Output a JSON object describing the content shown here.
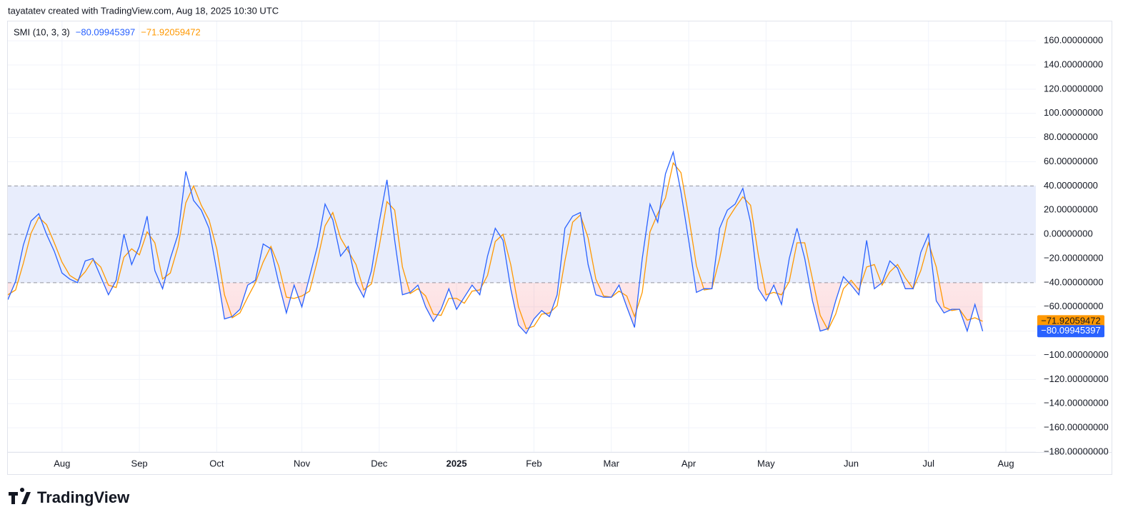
{
  "header": "tayatatev created with TradingView.com, Aug 18, 2025 10:30 UTC",
  "footer": "TradingView",
  "chart_data": {
    "type": "line",
    "title": "SMI (10, 3, 3)",
    "categories": [
      null,
      null,
      null,
      null,
      null,
      null,
      null,
      "Aug",
      null,
      null,
      null,
      null,
      null,
      null,
      null,
      null,
      null,
      "Sep",
      null,
      null,
      null,
      null,
      null,
      null,
      null,
      null,
      null,
      "Oct",
      null,
      null,
      null,
      null,
      null,
      null,
      null,
      null,
      null,
      null,
      "Nov",
      null,
      null,
      null,
      null,
      null,
      null,
      null,
      null,
      null,
      "Dec",
      null,
      null,
      null,
      null,
      null,
      null,
      null,
      null,
      null,
      "2025",
      null,
      null,
      null,
      null,
      null,
      null,
      null,
      null,
      null,
      "Feb",
      null,
      null,
      null,
      null,
      null,
      null,
      null,
      null,
      null,
      "Mar",
      null,
      null,
      null,
      null,
      null,
      null,
      null,
      null,
      null,
      "Apr",
      null,
      null,
      null,
      null,
      null,
      null,
      null,
      null,
      null,
      "May",
      null,
      null,
      null,
      null,
      null,
      null,
      null,
      null,
      null,
      null,
      "Jun",
      null,
      null,
      null,
      null,
      null,
      null,
      null,
      null,
      null,
      "Jul",
      null,
      null,
      null,
      null,
      null,
      null,
      null,
      null,
      null,
      "Aug"
    ],
    "series": [
      {
        "color": "#2962ff",
        "values": [
          -54,
          -39,
          -9,
          11,
          17,
          0,
          -14,
          -32,
          -37,
          -40,
          -22,
          -20,
          -35,
          -50,
          -38,
          0,
          -25,
          -10,
          15,
          -30,
          -45,
          -20,
          0,
          52,
          28,
          20,
          5,
          -30,
          -70,
          -68,
          -62,
          -42,
          -38,
          -8,
          -12,
          -40,
          -65,
          -42,
          -60,
          -35,
          -10,
          25,
          12,
          -18,
          -10,
          -40,
          -52,
          -30,
          10,
          45,
          -5,
          -50,
          -48,
          -42,
          -60,
          -72,
          -62,
          -45,
          -62,
          -52,
          -42,
          -50,
          -18,
          5,
          -5,
          -45,
          -75,
          -82,
          -70,
          -63,
          -68,
          -50,
          5,
          15,
          18,
          -25,
          -50,
          -52,
          -52,
          -42,
          -60,
          -77,
          -20,
          25,
          10,
          50,
          68,
          35,
          -5,
          -48,
          -45,
          -45,
          5,
          20,
          25,
          38,
          10,
          -45,
          -55,
          -42,
          -58,
          -20,
          5,
          -20,
          -55,
          -80,
          -78,
          -55,
          -35,
          -42,
          -50,
          -5,
          -45,
          -40,
          -22,
          -28,
          -45,
          -45,
          -15,
          0,
          -55,
          -65,
          -62,
          -62,
          -80,
          -58,
          -80.09945397,
          null,
          null,
          null
        ],
        "value_labels": [
          null,
          null,
          null,
          null,
          null,
          null,
          null,
          null,
          null,
          null,
          null,
          null,
          null,
          null,
          null,
          null,
          null,
          null,
          null,
          null,
          null,
          null,
          null,
          null,
          null,
          null,
          null,
          null,
          null,
          null,
          null,
          null,
          null,
          null,
          null,
          null,
          null,
          null,
          null,
          null,
          null,
          null,
          null,
          null,
          null,
          null,
          null,
          null,
          null,
          null,
          null,
          null,
          null,
          null,
          null,
          null,
          null,
          null,
          null,
          null,
          null,
          null,
          null,
          null,
          null,
          null,
          null,
          null,
          null,
          null,
          null,
          null,
          null,
          null,
          null,
          null,
          null,
          null,
          null,
          null,
          null,
          null,
          null,
          null,
          null,
          null,
          null,
          null,
          null,
          null,
          null,
          null,
          null,
          null,
          null,
          null,
          null,
          null,
          null,
          null,
          null,
          null,
          null,
          null,
          null,
          null,
          null,
          null,
          null,
          null,
          null,
          null,
          null,
          null,
          null,
          null,
          null,
          null,
          null,
          null,
          null,
          null,
          null,
          null,
          null,
          null,
          "−80.09945397",
          null,
          null,
          null
        ]
      },
      {
        "color": "#ff9800",
        "values": [
          -50,
          -46,
          -24,
          1,
          14,
          8,
          -7,
          -23,
          -34,
          -38,
          -31,
          -21,
          -27,
          -42,
          -44,
          -19,
          -12,
          -17,
          2,
          -7,
          -37,
          -32,
          -10,
          26,
          40,
          24,
          12,
          -12,
          -50,
          -69,
          -65,
          -52,
          -40,
          -23,
          -10,
          -26,
          -52,
          -53,
          -51,
          -47,
          -22,
          7,
          18,
          -3,
          -14,
          -25,
          -46,
          -41,
          -10,
          27,
          20,
          -27,
          -49,
          -45,
          -51,
          -66,
          -67,
          -53,
          -53,
          -57,
          -47,
          -46,
          -34,
          -6,
          0,
          -25,
          -60,
          -78,
          -76,
          -66,
          -65,
          -59,
          -22,
          10,
          16,
          -3,
          -37,
          -51,
          -52,
          -47,
          -51,
          -68,
          -48,
          2,
          17,
          30,
          59,
          51,
          15,
          -26,
          -46,
          -45,
          -20,
          12,
          22,
          31,
          24,
          -17,
          -50,
          -48,
          -50,
          -39,
          -7,
          -7,
          -37,
          -67,
          -79,
          -66,
          -45,
          -38,
          -46,
          -27,
          -25,
          -42,
          -31,
          -25,
          -36,
          -45,
          -30,
          -7,
          -27,
          -60,
          -63,
          -62,
          -71,
          -69,
          -71.92059472,
          null,
          null,
          null
        ],
        "value_labels": [
          null,
          null,
          null,
          null,
          null,
          null,
          null,
          null,
          null,
          null,
          null,
          null,
          null,
          null,
          null,
          null,
          null,
          null,
          null,
          null,
          null,
          null,
          null,
          null,
          null,
          null,
          null,
          null,
          null,
          null,
          null,
          null,
          null,
          null,
          null,
          null,
          null,
          null,
          null,
          null,
          null,
          null,
          null,
          null,
          null,
          null,
          null,
          null,
          null,
          null,
          null,
          null,
          null,
          null,
          null,
          null,
          null,
          null,
          null,
          null,
          null,
          null,
          null,
          null,
          null,
          null,
          null,
          null,
          null,
          null,
          null,
          null,
          null,
          null,
          null,
          null,
          null,
          null,
          null,
          null,
          null,
          null,
          null,
          null,
          null,
          null,
          null,
          null,
          null,
          null,
          null,
          null,
          null,
          null,
          null,
          null,
          null,
          null,
          null,
          null,
          null,
          null,
          null,
          null,
          null,
          null,
          null,
          null,
          null,
          null,
          null,
          null,
          null,
          null,
          null,
          null,
          null,
          null,
          null,
          null,
          null,
          null,
          null,
          null,
          null,
          null,
          "−71.92059472",
          null,
          null,
          null
        ]
      }
    ],
    "ylim": [
      -180,
      176
    ],
    "yticks": [
      {
        "value": 160,
        "label": "160.00000000"
      },
      {
        "value": 140,
        "label": "140.00000000"
      },
      {
        "value": 120,
        "label": "120.00000000"
      },
      {
        "value": 100,
        "label": "100.00000000"
      },
      {
        "value": 80,
        "label": "80.00000000"
      },
      {
        "value": 60,
        "label": "60.00000000"
      },
      {
        "value": 40,
        "label": "40.00000000"
      },
      {
        "value": 20,
        "label": "20.00000000"
      },
      {
        "value": 0,
        "label": "0.00000000"
      },
      {
        "value": -20,
        "label": "−20.00000000"
      },
      {
        "value": -40,
        "label": "−40.00000000"
      },
      {
        "value": -60,
        "label": "−60.00000000"
      },
      {
        "value": -80,
        "label": "−80.00000000"
      },
      {
        "value": -100,
        "label": "−100.00000000"
      },
      {
        "value": -120,
        "label": "−120.00000000"
      },
      {
        "value": -140,
        "label": "−140.00000000"
      },
      {
        "value": -160,
        "label": "−160.00000000"
      },
      {
        "value": -180,
        "label": "−180.00000000"
      }
    ],
    "levels": [
      40,
      0,
      -40
    ],
    "band_color": "#e8edfc",
    "grid": true
  }
}
